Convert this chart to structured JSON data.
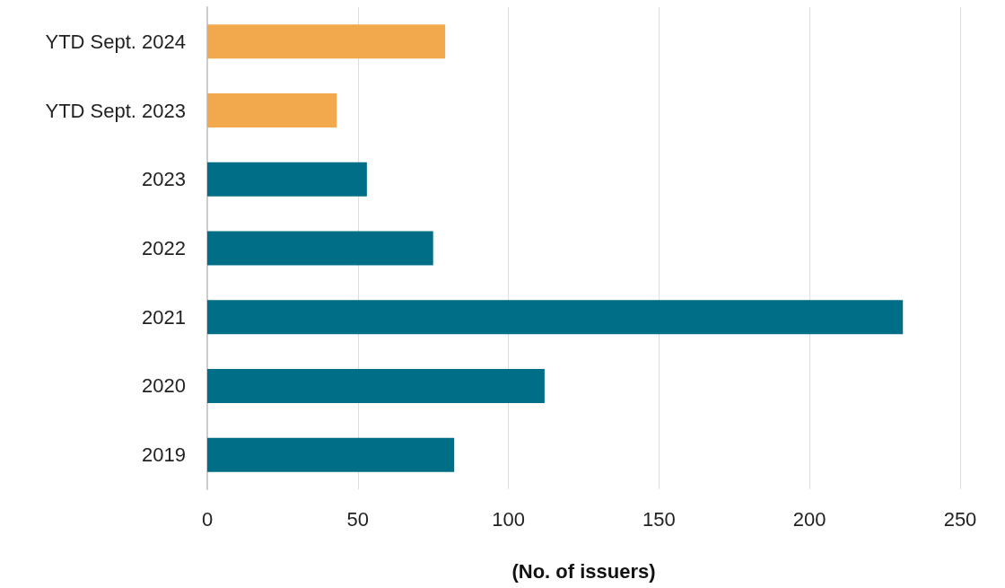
{
  "chart_data": {
    "type": "bar",
    "orientation": "horizontal",
    "xlabel": "(No. of issuers)",
    "categories": [
      "YTD Sept. 2024",
      "YTD Sept. 2023",
      "2023",
      "2022",
      "2021",
      "2020",
      "2019"
    ],
    "values": [
      79,
      43,
      53,
      75,
      231,
      112,
      82
    ],
    "colors": [
      "#f2a84c",
      "#f2a84c",
      "#006e87",
      "#006e87",
      "#006e87",
      "#006e87",
      "#006e87"
    ],
    "xlim": [
      0,
      250
    ],
    "xticks": [
      0,
      50,
      100,
      150,
      200,
      250
    ],
    "grid": "x"
  }
}
